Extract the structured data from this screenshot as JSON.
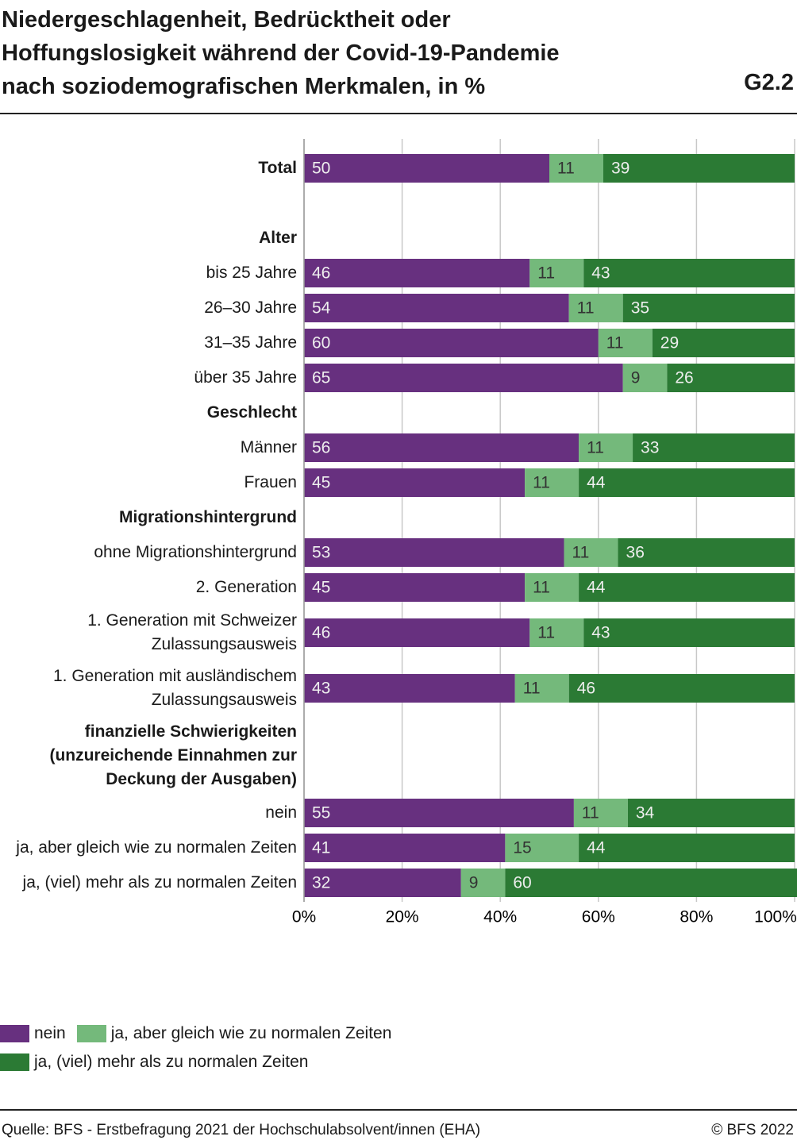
{
  "chart_data": {
    "type": "stacked-barh",
    "title": [
      "Niedergeschlagenheit, Bedrücktheit oder",
      "Hoffungslosigkeit während der Covid-19-Pandemie",
      "nach soziodemografischen Merkmalen, in %"
    ],
    "figure_id": "G2.2",
    "categories": [
      "Total",
      null,
      "Alter",
      "bis 25 Jahre",
      "26–30 Jahre",
      "31–35 Jahre",
      "über 35 Jahre",
      "Geschlecht",
      "Männer",
      "Frauen",
      "Migrationshintergrund",
      "ohne Migrationshintergrund",
      "2. Generation",
      "1. Generation mit Schweizer Zulassungsausweis",
      "1. Generation mit ausländischem Zulassungsausweis",
      "finanzielle Schwierigkeiten (unzureichende Einnahmen zur Deckung der Ausgaben)",
      "nein",
      "ja, aber gleich wie zu normalen Zeiten",
      "ja, (viel) mehr als zu normalen Zeiten"
    ],
    "series": [
      {
        "name": "nein",
        "color": "#67307f",
        "values": [
          50,
          null,
          null,
          46,
          54,
          60,
          65,
          null,
          56,
          45,
          null,
          53,
          45,
          46,
          43,
          null,
          55,
          41,
          32
        ]
      },
      {
        "name": "ja, aber gleich wie zu normalen Zeiten",
        "color": "#74b97b",
        "values": [
          11,
          null,
          null,
          11,
          11,
          11,
          9,
          null,
          11,
          11,
          null,
          11,
          11,
          11,
          11,
          null,
          11,
          15,
          9
        ]
      },
      {
        "name": "ja, (viel) mehr als zu normalen Zeiten",
        "color": "#2b7a34",
        "values": [
          39,
          null,
          null,
          43,
          35,
          29,
          26,
          null,
          33,
          44,
          null,
          36,
          44,
          43,
          46,
          null,
          34,
          44,
          60
        ]
      }
    ],
    "xlim": [
      0,
      100
    ],
    "xticks": [
      {
        "value": 0,
        "label": "0%"
      },
      {
        "value": 20,
        "label": "20%"
      },
      {
        "value": 40,
        "label": "40%"
      },
      {
        "value": 60,
        "label": "60%"
      },
      {
        "value": 80,
        "label": "80%"
      },
      {
        "value": 100,
        "label": "100%"
      }
    ],
    "grid": true,
    "source": "Quelle: BFS - Erstbefragung 2021 der Hochschulabsolvent/innen (EHA)",
    "copyright": "© BFS 2022"
  }
}
